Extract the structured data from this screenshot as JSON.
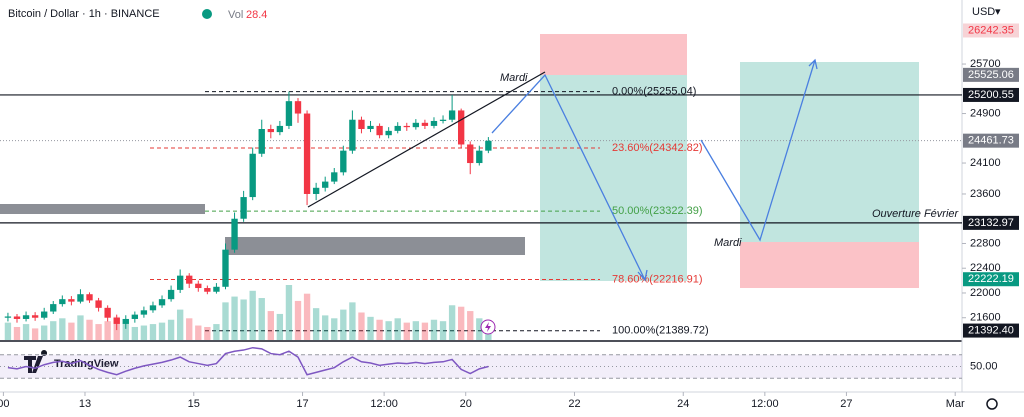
{
  "chart_data": {
    "type": "candlestick",
    "title": "Bitcoin / Dollar · 1h · BINANCE",
    "volume_label": "Vol",
    "volume_value": 28.4,
    "currency": "USD",
    "watermark": "TradingView",
    "up_color": "#089981",
    "down_color": "#f23645",
    "x": [
      -36,
      -32,
      -28,
      -24,
      -20,
      -16,
      -12,
      -8,
      -4,
      0,
      4,
      8,
      12,
      16,
      20,
      24,
      28,
      32,
      36,
      40,
      44,
      48,
      52,
      56,
      60,
      64,
      68,
      72,
      76,
      80,
      84,
      88,
      92,
      96,
      100,
      104,
      108,
      112,
      116,
      120,
      124,
      128,
      132,
      136,
      140,
      144,
      148,
      152,
      156,
      160,
      164,
      168,
      172,
      176
    ],
    "open": [
      21600,
      21620,
      21580,
      21640,
      21600,
      21700,
      21820,
      21900,
      21860,
      21980,
      21880,
      21760,
      21600,
      21500,
      21580,
      21650,
      21720,
      21800,
      21900,
      22050,
      22280,
      22150,
      22080,
      22020,
      22100,
      22700,
      23200,
      23550,
      24250,
      24650,
      24600,
      24700,
      25100,
      24900,
      23600,
      23700,
      23800,
      23950,
      24300,
      24800,
      24650,
      24700,
      24550,
      24620,
      24700,
      24680,
      24750,
      24700,
      24780,
      24800,
      24950,
      24400,
      24100,
      24300
    ],
    "high": [
      21680,
      21660,
      21700,
      21690,
      21760,
      21870,
      21960,
      21950,
      22060,
      22010,
      21920,
      21800,
      21650,
      21640,
      21700,
      21780,
      21860,
      21960,
      22120,
      22380,
      22320,
      22200,
      22120,
      22160,
      22800,
      23300,
      23650,
      24350,
      24800,
      24720,
      24780,
      25255,
      25150,
      24950,
      23780,
      23880,
      24020,
      24380,
      24950,
      24850,
      24780,
      24740,
      24680,
      24760,
      24750,
      24810,
      24800,
      24840,
      24870,
      25200,
      24980,
      24450,
      24380,
      24520
    ],
    "low": [
      21540,
      21520,
      21540,
      21550,
      21570,
      21660,
      21780,
      21800,
      21830,
      21840,
      21700,
      21540,
      21400,
      21420,
      21520,
      21600,
      21680,
      21760,
      21860,
      22000,
      22080,
      22020,
      21980,
      21990,
      22060,
      22650,
      23150,
      23500,
      24200,
      24500,
      24550,
      24650,
      24750,
      23420,
      23500,
      23640,
      23760,
      23900,
      24250,
      24580,
      24600,
      24500,
      24500,
      24580,
      24620,
      24640,
      24650,
      24660,
      24740,
      24760,
      24350,
      23920,
      24060,
      24260
    ],
    "close": [
      21620,
      21580,
      21640,
      21600,
      21700,
      21820,
      21900,
      21860,
      21980,
      21880,
      21760,
      21600,
      21500,
      21580,
      21650,
      21720,
      21800,
      21900,
      22050,
      22280,
      22150,
      22080,
      22020,
      22100,
      22700,
      23200,
      23550,
      24250,
      24650,
      24600,
      24700,
      25100,
      24900,
      23600,
      23700,
      23800,
      23950,
      24300,
      24800,
      24650,
      24700,
      24550,
      24620,
      24700,
      24680,
      24750,
      24700,
      24780,
      24800,
      24950,
      24400,
      24100,
      24300,
      24460
    ],
    "volume": [
      1200,
      900,
      1100,
      800,
      1000,
      1300,
      1500,
      1200,
      1700,
      1400,
      1100,
      1300,
      1600,
      1200,
      900,
      1000,
      1100,
      1200,
      1400,
      2100,
      1500,
      1000,
      900,
      1100,
      2600,
      3000,
      2800,
      3400,
      2900,
      2000,
      1800,
      3800,
      2700,
      3200,
      2200,
      1700,
      1500,
      2100,
      2600,
      1900,
      1600,
      1400,
      1300,
      1500,
      1200,
      1300,
      1200,
      1400,
      1300,
      2400,
      2300,
      2000,
      1500,
      900
    ],
    "xlim": [
      -37.5,
      387
    ],
    "xticks": [
      {
        "value": -36,
        "label": "00"
      },
      {
        "value": 0,
        "label": "13"
      },
      {
        "value": 48,
        "label": "15"
      },
      {
        "value": 96,
        "label": "17"
      },
      {
        "value": 132,
        "label": "12:00"
      },
      {
        "value": 168,
        "label": "20"
      },
      {
        "value": 216,
        "label": "22"
      },
      {
        "value": 264,
        "label": "24"
      },
      {
        "value": 300,
        "label": "12:00"
      },
      {
        "value": 336,
        "label": "27"
      },
      {
        "value": 384,
        "label": "Mar"
      }
    ],
    "ylim": [
      21240,
      26735
    ],
    "yticks": [
      21600,
      22000,
      22400,
      22800,
      23600,
      24100,
      24900,
      25700
    ],
    "price_labels": [
      {
        "value": 26242.35,
        "bg": "#f7d3d6",
        "fg": "#f23645"
      },
      {
        "value": 25525.06,
        "bg": "#787b86",
        "fg": "#ffffff"
      },
      {
        "value": 25200.55,
        "bg": "#131722",
        "fg": "#ffffff",
        "line": "solid"
      },
      {
        "value": 24461.73,
        "bg": "#787b86",
        "fg": "#ffffff",
        "line": "dotted"
      },
      {
        "value": 23132.97,
        "bg": "#131722",
        "fg": "#ffffff",
        "line": "solid"
      },
      {
        "value": 22222.19,
        "bg": "#089981",
        "fg": "#ffffff"
      },
      {
        "value": 21392.4,
        "label": "21392.40",
        "bg": "#131722",
        "fg": "#ffffff"
      }
    ],
    "fib_levels": [
      {
        "value": 25255.04,
        "label": "0.00%(25255.04)",
        "color": "#131722"
      },
      {
        "value": 24342.82,
        "label": "23.60%(24342.82)",
        "color": "#e53935"
      },
      {
        "value": 23322.39,
        "label": "50.00%(23322.39)",
        "color": "#43a047"
      },
      {
        "value": 22216.91,
        "label": "78.60%(22216.91)",
        "color": "#e53935"
      },
      {
        "value": 21389.72,
        "label": "100.00%(21389.72)",
        "color": "#131722"
      }
    ],
    "annotations": [
      "Mardi",
      "Mardi",
      "Ouverture Février"
    ],
    "rsi": {
      "color": "#7e57c2",
      "ylim": [
        10,
        90
      ],
      "bands": [
        30,
        70
      ],
      "yticks": [
        {
          "value": 50,
          "label": "50.00"
        }
      ],
      "values": [
        48,
        46,
        50,
        47,
        53,
        57,
        59,
        55,
        60,
        52,
        45,
        40,
        36,
        42,
        47,
        51,
        54,
        57,
        61,
        66,
        58,
        55,
        52,
        55,
        72,
        76,
        78,
        82,
        80,
        72,
        70,
        76,
        66,
        36,
        40,
        44,
        48,
        58,
        66,
        58,
        56,
        52,
        54,
        56,
        55,
        57,
        55,
        57,
        58,
        62,
        45,
        38,
        46,
        50
      ]
    }
  }
}
